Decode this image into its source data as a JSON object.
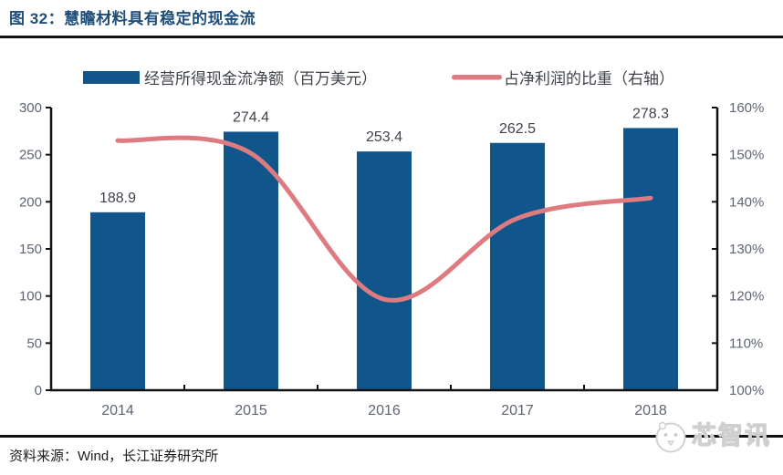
{
  "figure": {
    "title": "图 32：慧瞻材料具有稳定的现金流",
    "source": "资料来源：Wind，长江证券研究所"
  },
  "watermark": {
    "text": "芯智讯"
  },
  "colors": {
    "bar": "#11568A",
    "line": "#DE7B81",
    "title": "#1F4E79",
    "axis": "#111111",
    "tick_label": "#5E6673",
    "data_label": "#3F434B",
    "legend_text": "#3F434B"
  },
  "chart_data": {
    "type": "bar",
    "subtype": "bar+line dual axis",
    "categories": [
      "2014",
      "2015",
      "2016",
      "2017",
      "2018"
    ],
    "series": [
      {
        "name": "经营所得现金流净额（百万美元）",
        "type": "bar",
        "axis": "left",
        "values": [
          188.9,
          274.4,
          253.4,
          262.5,
          278.3
        ],
        "labels": [
          "188.9",
          "274.4",
          "253.4",
          "262.5",
          "278.3"
        ]
      },
      {
        "name": "占净利润的比重（右轴）",
        "type": "line",
        "axis": "right",
        "values": [
          153.0,
          150.3,
          119.3,
          136.5,
          140.8
        ]
      }
    ],
    "left_axis": {
      "min": 0,
      "max": 300,
      "tick_values": [
        0,
        50,
        100,
        150,
        200,
        250,
        300
      ],
      "tick_labels": [
        "0",
        "50",
        "100",
        "150",
        "200",
        "250",
        "300"
      ]
    },
    "right_axis": {
      "min": 100,
      "max": 160,
      "tick_values": [
        100,
        110,
        120,
        130,
        140,
        150,
        160
      ],
      "tick_labels": [
        "100%",
        "110%",
        "120%",
        "130%",
        "140%",
        "150%",
        "160%"
      ]
    },
    "legend_position": "top",
    "grid": false
  }
}
